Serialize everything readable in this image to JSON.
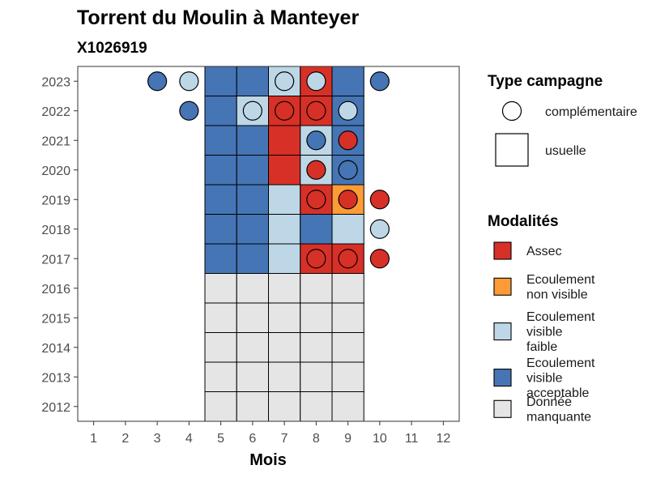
{
  "chart_data": {
    "type": "heatmap",
    "title": "Torrent du Moulin à Manteyer",
    "subtitle": "X1026919",
    "xlabel": "Mois",
    "ylabel": "",
    "x_ticks": [
      "1",
      "2",
      "3",
      "4",
      "5",
      "6",
      "7",
      "8",
      "9",
      "10",
      "11",
      "12"
    ],
    "y_ticks": [
      "2012",
      "2013",
      "2014",
      "2015",
      "2016",
      "2017",
      "2018",
      "2019",
      "2020",
      "2021",
      "2022",
      "2023"
    ],
    "xlim": [
      0.5,
      12.5
    ],
    "ylim": [
      2011.5,
      2023.5
    ],
    "grid": false,
    "colors": {
      "Assec": "#d73027",
      "Ecoulement non visible": "#fd9b37",
      "Ecoulement visible faible": "#bdd7e7",
      "Ecoulement visible acceptable": "#4575b4",
      "Donnée manquante": "#e5e5e5"
    },
    "usuelle": [
      {
        "month": 5,
        "year": 2023,
        "modalite": "Ecoulement visible acceptable"
      },
      {
        "month": 6,
        "year": 2023,
        "modalite": "Ecoulement visible acceptable"
      },
      {
        "month": 7,
        "year": 2023,
        "modalite": "Ecoulement visible faible"
      },
      {
        "month": 8,
        "year": 2023,
        "modalite": "Assec"
      },
      {
        "month": 9,
        "year": 2023,
        "modalite": "Ecoulement visible acceptable"
      },
      {
        "month": 5,
        "year": 2022,
        "modalite": "Ecoulement visible acceptable"
      },
      {
        "month": 6,
        "year": 2022,
        "modalite": "Ecoulement visible faible"
      },
      {
        "month": 7,
        "year": 2022,
        "modalite": "Assec"
      },
      {
        "month": 8,
        "year": 2022,
        "modalite": "Assec"
      },
      {
        "month": 9,
        "year": 2022,
        "modalite": "Ecoulement visible acceptable"
      },
      {
        "month": 5,
        "year": 2021,
        "modalite": "Ecoulement visible acceptable"
      },
      {
        "month": 6,
        "year": 2021,
        "modalite": "Ecoulement visible acceptable"
      },
      {
        "month": 7,
        "year": 2021,
        "modalite": "Assec"
      },
      {
        "month": 8,
        "year": 2021,
        "modalite": "Ecoulement visible faible"
      },
      {
        "month": 9,
        "year": 2021,
        "modalite": "Ecoulement visible acceptable"
      },
      {
        "month": 5,
        "year": 2020,
        "modalite": "Ecoulement visible acceptable"
      },
      {
        "month": 6,
        "year": 2020,
        "modalite": "Ecoulement visible acceptable"
      },
      {
        "month": 7,
        "year": 2020,
        "modalite": "Assec"
      },
      {
        "month": 8,
        "year": 2020,
        "modalite": "Ecoulement visible faible"
      },
      {
        "month": 9,
        "year": 2020,
        "modalite": "Ecoulement visible acceptable"
      },
      {
        "month": 5,
        "year": 2019,
        "modalite": "Ecoulement visible acceptable"
      },
      {
        "month": 6,
        "year": 2019,
        "modalite": "Ecoulement visible acceptable"
      },
      {
        "month": 7,
        "year": 2019,
        "modalite": "Ecoulement visible faible"
      },
      {
        "month": 8,
        "year": 2019,
        "modalite": "Assec"
      },
      {
        "month": 9,
        "year": 2019,
        "modalite": "Ecoulement non visible"
      },
      {
        "month": 5,
        "year": 2018,
        "modalite": "Ecoulement visible acceptable"
      },
      {
        "month": 6,
        "year": 2018,
        "modalite": "Ecoulement visible acceptable"
      },
      {
        "month": 7,
        "year": 2018,
        "modalite": "Ecoulement visible faible"
      },
      {
        "month": 8,
        "year": 2018,
        "modalite": "Ecoulement visible acceptable"
      },
      {
        "month": 9,
        "year": 2018,
        "modalite": "Ecoulement visible faible"
      },
      {
        "month": 5,
        "year": 2017,
        "modalite": "Ecoulement visible acceptable"
      },
      {
        "month": 6,
        "year": 2017,
        "modalite": "Ecoulement visible acceptable"
      },
      {
        "month": 7,
        "year": 2017,
        "modalite": "Ecoulement visible faible"
      },
      {
        "month": 8,
        "year": 2017,
        "modalite": "Assec"
      },
      {
        "month": 9,
        "year": 2017,
        "modalite": "Assec"
      },
      {
        "month": 5,
        "year": 2016,
        "modalite": "Donnée manquante"
      },
      {
        "month": 6,
        "year": 2016,
        "modalite": "Donnée manquante"
      },
      {
        "month": 7,
        "year": 2016,
        "modalite": "Donnée manquante"
      },
      {
        "month": 8,
        "year": 2016,
        "modalite": "Donnée manquante"
      },
      {
        "month": 9,
        "year": 2016,
        "modalite": "Donnée manquante"
      },
      {
        "month": 5,
        "year": 2015,
        "modalite": "Donnée manquante"
      },
      {
        "month": 6,
        "year": 2015,
        "modalite": "Donnée manquante"
      },
      {
        "month": 7,
        "year": 2015,
        "modalite": "Donnée manquante"
      },
      {
        "month": 8,
        "year": 2015,
        "modalite": "Donnée manquante"
      },
      {
        "month": 9,
        "year": 2015,
        "modalite": "Donnée manquante"
      },
      {
        "month": 5,
        "year": 2014,
        "modalite": "Donnée manquante"
      },
      {
        "month": 6,
        "year": 2014,
        "modalite": "Donnée manquante"
      },
      {
        "month": 7,
        "year": 2014,
        "modalite": "Donnée manquante"
      },
      {
        "month": 8,
        "year": 2014,
        "modalite": "Donnée manquante"
      },
      {
        "month": 9,
        "year": 2014,
        "modalite": "Donnée manquante"
      },
      {
        "month": 5,
        "year": 2013,
        "modalite": "Donnée manquante"
      },
      {
        "month": 6,
        "year": 2013,
        "modalite": "Donnée manquante"
      },
      {
        "month": 7,
        "year": 2013,
        "modalite": "Donnée manquante"
      },
      {
        "month": 8,
        "year": 2013,
        "modalite": "Donnée manquante"
      },
      {
        "month": 9,
        "year": 2013,
        "modalite": "Donnée manquante"
      },
      {
        "month": 5,
        "year": 2012,
        "modalite": "Donnée manquante"
      },
      {
        "month": 6,
        "year": 2012,
        "modalite": "Donnée manquante"
      },
      {
        "month": 7,
        "year": 2012,
        "modalite": "Donnée manquante"
      },
      {
        "month": 8,
        "year": 2012,
        "modalite": "Donnée manquante"
      },
      {
        "month": 9,
        "year": 2012,
        "modalite": "Donnée manquante"
      }
    ],
    "complementaire": [
      {
        "month": 3,
        "year": 2023,
        "modalite": "Ecoulement visible acceptable"
      },
      {
        "month": 4,
        "year": 2023,
        "modalite": "Ecoulement visible faible"
      },
      {
        "month": 7,
        "year": 2023,
        "modalite": "Ecoulement visible faible"
      },
      {
        "month": 8,
        "year": 2023,
        "modalite": "Ecoulement visible faible"
      },
      {
        "month": 10,
        "year": 2023,
        "modalite": "Ecoulement visible acceptable"
      },
      {
        "month": 4,
        "year": 2022,
        "modalite": "Ecoulement visible acceptable"
      },
      {
        "month": 6,
        "year": 2022,
        "modalite": "Ecoulement visible faible"
      },
      {
        "month": 7,
        "year": 2022,
        "modalite": "Assec"
      },
      {
        "month": 8,
        "year": 2022,
        "modalite": "Assec"
      },
      {
        "month": 9,
        "year": 2022,
        "modalite": "Ecoulement visible faible"
      },
      {
        "month": 8,
        "year": 2021,
        "modalite": "Ecoulement visible acceptable"
      },
      {
        "month": 9,
        "year": 2021,
        "modalite": "Assec"
      },
      {
        "month": 8,
        "year": 2020,
        "modalite": "Assec"
      },
      {
        "month": 9,
        "year": 2020,
        "modalite": "Ecoulement visible acceptable"
      },
      {
        "month": 8,
        "year": 2019,
        "modalite": "Assec"
      },
      {
        "month": 9,
        "year": 2019,
        "modalite": "Assec"
      },
      {
        "month": 10,
        "year": 2019,
        "modalite": "Assec"
      },
      {
        "month": 10,
        "year": 2018,
        "modalite": "Ecoulement visible faible"
      },
      {
        "month": 8,
        "year": 2017,
        "modalite": "Assec"
      },
      {
        "month": 9,
        "year": 2017,
        "modalite": "Assec"
      },
      {
        "month": 10,
        "year": 2017,
        "modalite": "Assec"
      }
    ],
    "legend_type": {
      "title": "Type campagne",
      "items": [
        "complémentaire",
        "usuelle"
      ],
      "position": "right"
    },
    "legend_modalites": {
      "title": "Modalités",
      "items": [
        {
          "key": "Assec",
          "lines": [
            "Assec"
          ]
        },
        {
          "key": "Ecoulement non visible",
          "lines": [
            "Ecoulement",
            "non visible"
          ]
        },
        {
          "key": "Ecoulement visible faible",
          "lines": [
            "Ecoulement",
            "visible",
            "faible"
          ]
        },
        {
          "key": "Ecoulement visible acceptable",
          "lines": [
            "Ecoulement",
            "visible",
            "acceptable"
          ]
        },
        {
          "key": "Donnée manquante",
          "lines": [
            "Donnée",
            "manquante"
          ]
        }
      ],
      "position": "right"
    }
  }
}
